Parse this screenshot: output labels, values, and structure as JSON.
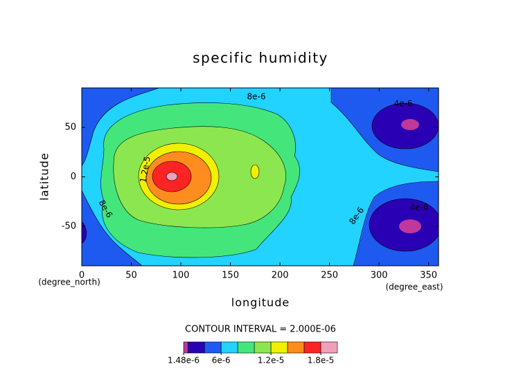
{
  "chart_data": {
    "type": "contour",
    "title": "specific humidity",
    "x_label": "longitude",
    "y_label": "latitude",
    "x_units": "(degree_east)",
    "y_units": "(degree_north)",
    "xlim": [
      0,
      360
    ],
    "ylim": [
      -90,
      90
    ],
    "xticks": [
      0,
      50,
      100,
      150,
      200,
      250,
      300,
      350
    ],
    "yticks": [
      -50,
      0,
      50
    ],
    "contour_interval": "CONTOUR INTERVAL = 2.000E-06",
    "levels": [
      1.48e-06,
      2e-06,
      4e-06,
      6e-06,
      8e-06,
      1e-05,
      1.2e-05,
      1.4e-05,
      1.6e-05,
      1.8e-05,
      2e-05
    ],
    "colors": [
      "#c0389c",
      "#2a00b4",
      "#1e5af0",
      "#22d2ff",
      "#44e67c",
      "#8ce650",
      "#f0f000",
      "#ff8c1e",
      "#ff2424",
      "#f0a0b8"
    ],
    "level_ticks": [
      {
        "value": 1.48e-06,
        "label": "1.48e-6"
      },
      {
        "value": 6e-06,
        "label": "6e-6"
      },
      {
        "value": 1.2e-05,
        "label": "1.2e-5"
      },
      {
        "value": 1.8e-05,
        "label": "1.8e-5"
      }
    ],
    "contour_labels": [
      "8e-6",
      "1.2e-5",
      "8e-6",
      "8e-6",
      "4e-6",
      "4e-6"
    ]
  }
}
